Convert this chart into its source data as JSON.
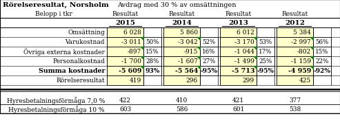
{
  "title_left": "Rörelseresultat, Norsholm",
  "title_right": "Avdrag med 30 % av omsättningen",
  "subtitle_col0": "Belopp i tkr",
  "subtitle_cols": [
    "Resultat",
    "Resultat",
    "Resultat",
    "Resultat"
  ],
  "years": [
    "2015",
    "2014",
    "2013",
    "2012"
  ],
  "rows": [
    {
      "label": "Omsättning",
      "vals": [
        "6 028",
        "",
        "5 860",
        "",
        "6 012",
        "",
        "5 384",
        ""
      ],
      "bold": false
    },
    {
      "label": "Varukostnad",
      "vals": [
        "-3 011",
        "50%",
        "-3 042",
        "52%",
        "-3 170",
        "53%",
        "-2 997",
        "56%"
      ],
      "bold": false
    },
    {
      "label": "Övriga externa kostnader",
      "vals": [
        "-897",
        "15%",
        "-915",
        "16%",
        "-1 044",
        "17%",
        "-802",
        "15%"
      ],
      "bold": false
    },
    {
      "label": "Personalkostnad",
      "vals": [
        "-1 700",
        "28%",
        "-1 607",
        "27%",
        "-1 499",
        "25%",
        "-1 159",
        "22%"
      ],
      "bold": false
    },
    {
      "label": "Summa kostnader",
      "vals": [
        "-5 609",
        "93%",
        "-5 564",
        "-95%",
        "-5 713",
        "-95%",
        "-4 959",
        "-92%"
      ],
      "bold": true
    },
    {
      "label": "Rörelseresultat",
      "vals": [
        "419",
        "",
        "296",
        "",
        "299",
        "",
        "425",
        ""
      ],
      "bold": false
    }
  ],
  "bottom_rows": [
    {
      "label": "Hyresbetalningsförmåga 7,0 %",
      "vals": [
        "422",
        "410",
        "421",
        "377"
      ]
    },
    {
      "label": "Hyresbetalningsförmåga 10 %",
      "vals": [
        "603",
        "586",
        "601",
        "538"
      ]
    }
  ],
  "cell_bg_yellow": "#FFFFCC",
  "cell_bg_white": "#FFFFFF",
  "green_tri_color": "#1a7a1a",
  "fig_w": 4.93,
  "fig_h": 2.05,
  "dpi": 100
}
